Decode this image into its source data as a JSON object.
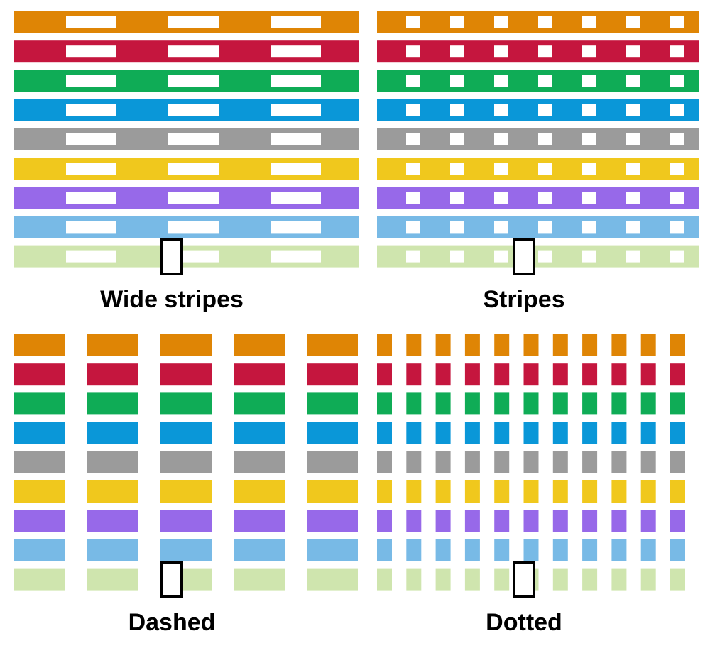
{
  "colors": [
    "#df8505",
    "#c5163e",
    "#0fac56",
    "#0a97d8",
    "#9b9b9b",
    "#f0c81d",
    "#9769e9",
    "#78bae6",
    "#cfe5ae"
  ],
  "background": "#ffffff",
  "panels": [
    {
      "id": "wide-stripes",
      "label": "Wide stripes",
      "style": "wide-stripes"
    },
    {
      "id": "stripes",
      "label": "Stripes",
      "style": "stripes"
    },
    {
      "id": "dashed",
      "label": "Dashed",
      "style": "dashed"
    },
    {
      "id": "dotted",
      "label": "Dotted",
      "style": "dotted"
    }
  ],
  "marker": {
    "shape": "small white rectangle with black outline"
  }
}
